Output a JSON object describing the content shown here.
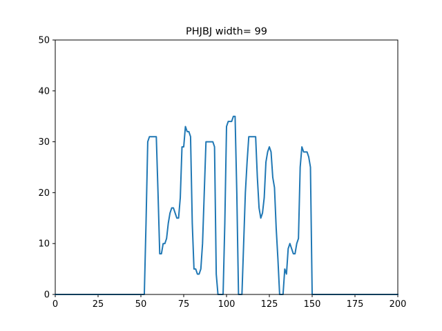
{
  "chart_data": {
    "type": "line",
    "title": "PHJBJ width= 99",
    "xlabel": "",
    "ylabel": "",
    "xlim": [
      0,
      200
    ],
    "ylim": [
      0,
      50
    ],
    "xticks": [
      0,
      25,
      50,
      75,
      100,
      125,
      150,
      175,
      200
    ],
    "yticks": [
      0,
      10,
      20,
      30,
      40,
      50
    ],
    "grid": false,
    "line_color": "#1f77b4",
    "series": [
      {
        "x": [
          0,
          52,
          53,
          54,
          55,
          56,
          57,
          58,
          59,
          60,
          61,
          62,
          63,
          64,
          65,
          66,
          67,
          68,
          69,
          70,
          71,
          72,
          73,
          74,
          75,
          76,
          77,
          78,
          79,
          80,
          81,
          82,
          83,
          84,
          85,
          86,
          87,
          88,
          89,
          90,
          91,
          92,
          93,
          94,
          95,
          96,
          97,
          98,
          99,
          100,
          101,
          102,
          103,
          104,
          105,
          106,
          107,
          108,
          109,
          110,
          111,
          112,
          113,
          114,
          115,
          116,
          117,
          118,
          119,
          120,
          121,
          122,
          123,
          124,
          125,
          126,
          127,
          128,
          129,
          130,
          131,
          132,
          133,
          134,
          135,
          136,
          137,
          138,
          139,
          140,
          141,
          142,
          143,
          144,
          145,
          146,
          147,
          148,
          149,
          150,
          151,
          152,
          200
        ],
        "values": [
          0,
          0,
          14,
          30,
          31,
          31,
          31,
          31,
          31,
          20,
          8,
          8,
          10,
          10,
          11,
          14,
          16,
          17,
          17,
          16,
          15,
          15,
          19,
          29,
          29,
          33,
          32,
          32,
          31,
          14,
          5,
          5,
          4,
          4,
          5,
          10,
          20,
          30,
          30,
          30,
          30,
          30,
          29,
          4,
          0,
          0,
          0,
          0,
          14,
          33,
          34,
          34,
          34,
          35,
          35,
          20,
          0,
          0,
          0,
          10,
          20,
          26,
          31,
          31,
          31,
          31,
          31,
          23,
          17,
          15,
          16,
          19,
          26,
          28,
          29,
          28,
          23,
          21,
          13,
          7,
          0,
          0,
          0,
          5,
          4,
          9,
          10,
          9,
          8,
          8,
          10,
          11,
          25,
          29,
          28,
          28,
          28,
          27,
          25,
          0,
          0,
          0,
          0
        ]
      }
    ]
  }
}
